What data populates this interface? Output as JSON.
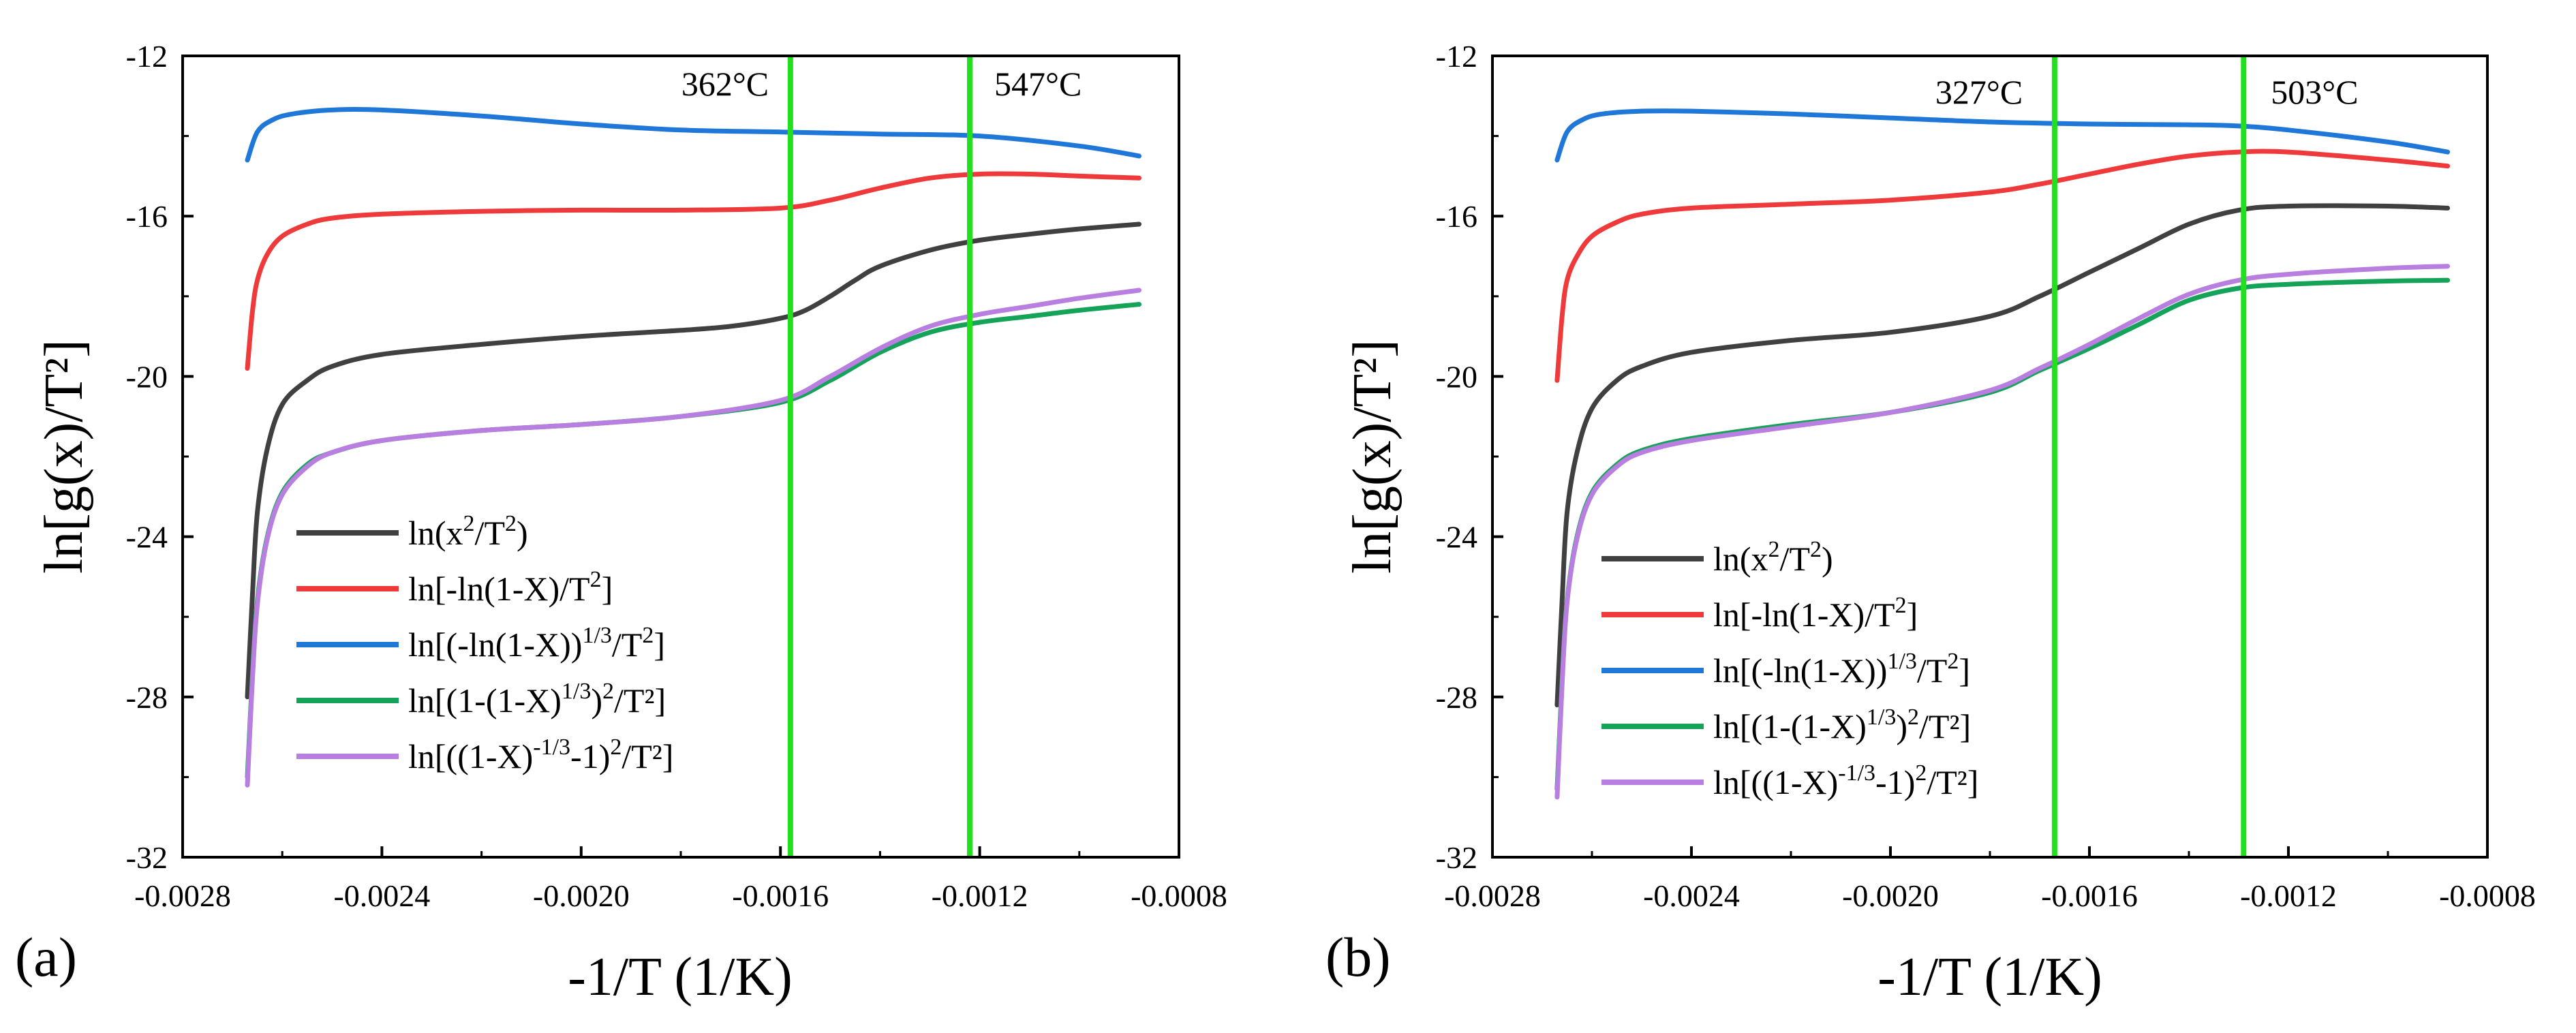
{
  "chart_data": [
    {
      "type": "line",
      "panel_label": "(a)",
      "xlabel": "-1/T (1/K)",
      "ylabel": "ln[g(x)/T²]",
      "xlim": [
        -0.0028,
        -0.0008
      ],
      "ylim": [
        -32,
        -12
      ],
      "x_ticks": [
        "-0.0028",
        "-0.0024",
        "-0.0020",
        "-0.0016",
        "-0.0012",
        "-0.0008"
      ],
      "y_ticks": [
        "-12",
        "-16",
        "-20",
        "-24",
        "-28",
        "-32"
      ],
      "legend_position": "lower-left",
      "vertical_lines": [
        {
          "x": -0.00158,
          "label": "362°C",
          "color": "#22e01e"
        },
        {
          "x": -0.00122,
          "label": "547°C",
          "color": "#22e01e"
        }
      ],
      "series": [
        {
          "name": "ln(x2/T2)",
          "label": {
            "t1": "ln(x",
            "s1": "2",
            "t2": "/T",
            "s2": "2",
            "t3": ")"
          },
          "color": "#404040",
          "x": [
            -0.00267,
            -0.00266,
            -0.00265,
            -0.00263,
            -0.0026,
            -0.00255,
            -0.0025,
            -0.0024,
            -0.0022,
            -0.002,
            -0.0018,
            -0.0017,
            -0.0016,
            -0.00155,
            -0.0015,
            -0.00145,
            -0.0014,
            -0.0013,
            -0.0012,
            -0.0011,
            -0.001,
            -0.00088
          ],
          "y": [
            -28,
            -25.5,
            -23.4,
            -21.8,
            -20.7,
            -20.1,
            -19.75,
            -19.45,
            -19.2,
            -19.0,
            -18.85,
            -18.75,
            -18.55,
            -18.35,
            -18.0,
            -17.6,
            -17.25,
            -16.85,
            -16.6,
            -16.45,
            -16.32,
            -16.2
          ]
        },
        {
          "name": "ln[-ln(1-X)/T2]",
          "label": {
            "t1": "ln[-ln(1-X)/T",
            "s1": "2",
            "t2": "]",
            "s2": "",
            "t3": ""
          },
          "color": "#ee3a3a",
          "x": [
            -0.00267,
            -0.00266,
            -0.00265,
            -0.00263,
            -0.0026,
            -0.00255,
            -0.0025,
            -0.0024,
            -0.0022,
            -0.002,
            -0.0018,
            -0.0016,
            -0.0015,
            -0.0014,
            -0.0013,
            -0.0012,
            -0.0011,
            -0.001,
            -0.00088
          ],
          "y": [
            -19.8,
            -18.4,
            -17.6,
            -16.95,
            -16.5,
            -16.2,
            -16.05,
            -15.95,
            -15.88,
            -15.85,
            -15.85,
            -15.8,
            -15.6,
            -15.3,
            -15.05,
            -14.95,
            -14.95,
            -15.0,
            -15.05
          ]
        },
        {
          "name": "ln[(-ln(1-X))1/3/T2]",
          "label": {
            "t1": "ln[(-ln(1-X))",
            "s1": "1/3",
            "t2": "/T",
            "s2": "2",
            "t3": "]"
          },
          "color": "#1f78d8",
          "x": [
            -0.00267,
            -0.00265,
            -0.00262,
            -0.00258,
            -0.0025,
            -0.0024,
            -0.0022,
            -0.002,
            -0.0018,
            -0.0016,
            -0.0014,
            -0.0012,
            -0.001,
            -0.00088
          ],
          "y": [
            -14.6,
            -13.9,
            -13.6,
            -13.45,
            -13.35,
            -13.35,
            -13.5,
            -13.7,
            -13.85,
            -13.9,
            -13.95,
            -14.0,
            -14.25,
            -14.5
          ]
        },
        {
          "name": "ln[(1-(1-X)1/3)2/T2]",
          "label": {
            "t1": "ln[(1-(1-X)",
            "s1": "1/3",
            "t2": ")",
            "s2": "2",
            "t3": "/T²]"
          },
          "color": "#15a35a",
          "x": [
            -0.00267,
            -0.00266,
            -0.00265,
            -0.00263,
            -0.0026,
            -0.00255,
            -0.0025,
            -0.0024,
            -0.0022,
            -0.002,
            -0.0018,
            -0.0016,
            -0.0015,
            -0.0014,
            -0.0013,
            -0.0012,
            -0.0011,
            -0.001,
            -0.00088
          ],
          "y": [
            -30,
            -27.5,
            -25.6,
            -24.0,
            -22.9,
            -22.2,
            -21.9,
            -21.6,
            -21.35,
            -21.2,
            -21.0,
            -20.65,
            -20.1,
            -19.4,
            -18.9,
            -18.65,
            -18.5,
            -18.35,
            -18.2
          ]
        },
        {
          "name": "ln[((1-X)-1/3-1)2/T2]",
          "label": {
            "t1": "ln[((1-X)",
            "s1": "-1/3",
            "t2": "-1)",
            "s2": "2",
            "t3": "/T²]"
          },
          "color": "#b87ee0",
          "x": [
            -0.00267,
            -0.00266,
            -0.00265,
            -0.00263,
            -0.0026,
            -0.00255,
            -0.0025,
            -0.0024,
            -0.0022,
            -0.002,
            -0.0018,
            -0.0016,
            -0.0015,
            -0.0014,
            -0.0013,
            -0.0012,
            -0.0011,
            -0.001,
            -0.00088
          ],
          "y": [
            -30.2,
            -27.6,
            -25.7,
            -24.05,
            -22.95,
            -22.25,
            -21.9,
            -21.6,
            -21.35,
            -21.2,
            -21.0,
            -20.6,
            -20.0,
            -19.3,
            -18.75,
            -18.45,
            -18.25,
            -18.05,
            -17.85
          ]
        }
      ]
    },
    {
      "type": "line",
      "panel_label": "(b)",
      "xlabel": "-1/T (1/K)",
      "ylabel": "ln[g(x)/T²]",
      "xlim": [
        -0.0028,
        -0.0008
      ],
      "ylim": [
        -32,
        -12
      ],
      "x_ticks": [
        "-0.0028",
        "-0.0024",
        "-0.0020",
        "-0.0016",
        "-0.0012",
        "-0.0008"
      ],
      "y_ticks": [
        "-12",
        "-16",
        "-20",
        "-24",
        "-28",
        "-32"
      ],
      "legend_position": "lower-left",
      "vertical_lines": [
        {
          "x": -0.00167,
          "label": "327°C",
          "color": "#22e01e"
        },
        {
          "x": -0.00129,
          "label": "503°C",
          "color": "#22e01e"
        }
      ],
      "series": [
        {
          "name": "ln(x2/T2)",
          "label": {
            "t1": "ln(x",
            "s1": "2",
            "t2": "/T",
            "s2": "2",
            "t3": ")"
          },
          "color": "#404040",
          "x": [
            -0.00267,
            -0.00266,
            -0.00265,
            -0.00263,
            -0.0026,
            -0.00255,
            -0.0025,
            -0.0024,
            -0.0022,
            -0.002,
            -0.0018,
            -0.0017,
            -0.0016,
            -0.0015,
            -0.0014,
            -0.0013,
            -0.0012,
            -0.001,
            -0.00088
          ],
          "y": [
            -28.2,
            -25.6,
            -23.4,
            -21.9,
            -20.8,
            -20.1,
            -19.75,
            -19.4,
            -19.1,
            -18.9,
            -18.5,
            -18.0,
            -17.4,
            -16.8,
            -16.2,
            -15.85,
            -15.75,
            -15.75,
            -15.8
          ]
        },
        {
          "name": "ln[-ln(1-X)/T2]",
          "label": {
            "t1": "ln[-ln(1-X)/T",
            "s1": "2",
            "t2": "]",
            "s2": "",
            "t3": ""
          },
          "color": "#ee3a3a",
          "x": [
            -0.00267,
            -0.00266,
            -0.00265,
            -0.00263,
            -0.0026,
            -0.00255,
            -0.0025,
            -0.0024,
            -0.0022,
            -0.002,
            -0.0018,
            -0.0017,
            -0.0016,
            -0.0015,
            -0.0014,
            -0.0013,
            -0.0012,
            -0.001,
            -0.00088
          ],
          "y": [
            -20.1,
            -18.5,
            -17.6,
            -17.0,
            -16.5,
            -16.15,
            -15.95,
            -15.8,
            -15.7,
            -15.6,
            -15.4,
            -15.2,
            -14.95,
            -14.7,
            -14.5,
            -14.4,
            -14.4,
            -14.6,
            -14.75
          ]
        },
        {
          "name": "ln[(-ln(1-X))1/3/T2]",
          "label": {
            "t1": "ln[(-ln(1-X))",
            "s1": "1/3",
            "t2": "/T",
            "s2": "2",
            "t3": "]"
          },
          "color": "#1f78d8",
          "x": [
            -0.00267,
            -0.00265,
            -0.00262,
            -0.00258,
            -0.0025,
            -0.0024,
            -0.0022,
            -0.002,
            -0.0018,
            -0.0016,
            -0.0014,
            -0.0013,
            -0.0012,
            -0.001,
            -0.00088
          ],
          "y": [
            -14.6,
            -13.9,
            -13.6,
            -13.45,
            -13.38,
            -13.38,
            -13.45,
            -13.55,
            -13.65,
            -13.7,
            -13.72,
            -13.75,
            -13.85,
            -14.15,
            -14.4
          ]
        },
        {
          "name": "ln[(1-(1-X)1/3)2/T2]",
          "label": {
            "t1": "ln[(1-(1-X)",
            "s1": "1/3",
            "t2": ")",
            "s2": "2",
            "t3": "/T²]"
          },
          "color": "#15a35a",
          "x": [
            -0.00267,
            -0.00266,
            -0.00265,
            -0.00263,
            -0.0026,
            -0.00255,
            -0.0025,
            -0.0024,
            -0.0022,
            -0.002,
            -0.0018,
            -0.0017,
            -0.0016,
            -0.0015,
            -0.0014,
            -0.0013,
            -0.0012,
            -0.001,
            -0.00088
          ],
          "y": [
            -30.3,
            -27.6,
            -25.6,
            -24.0,
            -22.9,
            -22.2,
            -21.85,
            -21.55,
            -21.2,
            -20.9,
            -20.4,
            -19.85,
            -19.3,
            -18.7,
            -18.1,
            -17.8,
            -17.7,
            -17.62,
            -17.6
          ]
        },
        {
          "name": "ln[((1-X)-1/3-1)2/T2]",
          "label": {
            "t1": "ln[((1-X)",
            "s1": "-1/3",
            "t2": "-1)",
            "s2": "2",
            "t3": "/T²]"
          },
          "color": "#b87ee0",
          "x": [
            -0.00267,
            -0.00266,
            -0.00265,
            -0.00263,
            -0.0026,
            -0.00255,
            -0.0025,
            -0.0024,
            -0.0022,
            -0.002,
            -0.0018,
            -0.0017,
            -0.0016,
            -0.0015,
            -0.0014,
            -0.0013,
            -0.0012,
            -0.001,
            -0.00088
          ],
          "y": [
            -30.5,
            -27.7,
            -25.65,
            -24.05,
            -22.95,
            -22.25,
            -21.9,
            -21.6,
            -21.25,
            -20.9,
            -20.35,
            -19.8,
            -19.2,
            -18.55,
            -17.95,
            -17.6,
            -17.45,
            -17.3,
            -17.25
          ]
        }
      ]
    }
  ]
}
